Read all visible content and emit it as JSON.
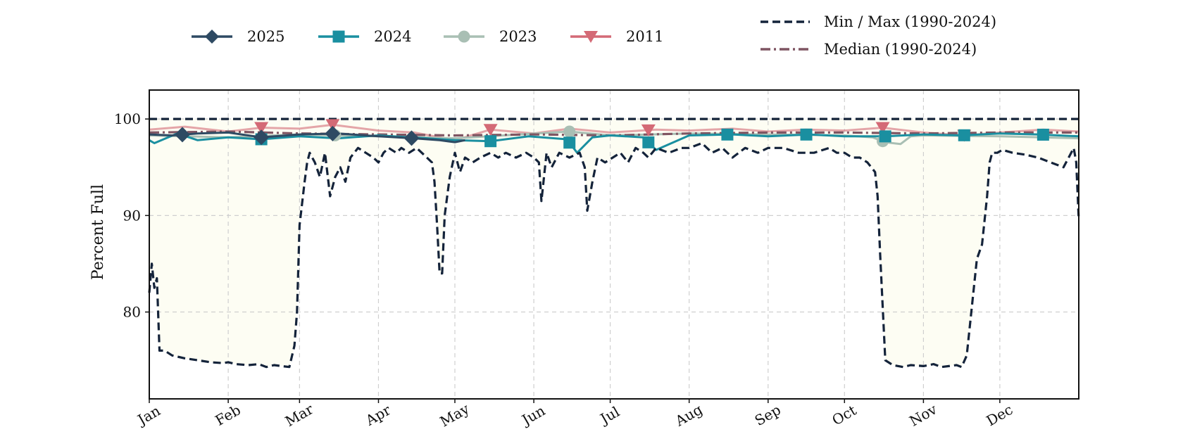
{
  "chart_data": {
    "type": "line",
    "title": "",
    "xlabel": "",
    "ylabel": "Percent Full",
    "ylim": [
      71,
      103
    ],
    "yticks": [
      80,
      90,
      100
    ],
    "x_tick_labels": [
      "Jan",
      "Feb",
      "Mar",
      "Apr",
      "May",
      "Jun",
      "Jul",
      "Aug",
      "Sep",
      "Oct",
      "Nov",
      "Dec"
    ],
    "x_tick_doy": [
      1,
      32,
      60,
      91,
      121,
      152,
      182,
      213,
      244,
      274,
      305,
      335
    ],
    "xlim_doy": [
      1,
      366
    ],
    "grid": true,
    "legend_placement": "top (above plot)",
    "shaded_band": "between min and max, light cream",
    "series": [
      {
        "name": "2025",
        "color": "#2e4a63",
        "marker": "diamond",
        "x_doy": [
          1,
          10,
          20,
          32,
          45,
          60,
          75,
          91,
          105,
          115,
          121,
          125
        ],
        "values": [
          98.4,
          98.3,
          98.5,
          98.6,
          98.1,
          98.4,
          98.5,
          98.2,
          98.0,
          97.8,
          97.6,
          97.8
        ],
        "marker_doy": [
          14,
          45,
          73,
          104
        ]
      },
      {
        "name": "2024",
        "color": "#1a8fa0",
        "marker": "square",
        "x_doy": [
          1,
          3,
          12,
          20,
          32,
          45,
          60,
          75,
          91,
          110,
          121,
          135,
          150,
          165,
          169,
          175,
          182,
          195,
          200,
          213,
          230,
          244,
          260,
          274,
          290,
          305,
          320,
          335,
          350,
          366
        ],
        "values": [
          97.8,
          97.5,
          98.5,
          97.8,
          98.1,
          97.9,
          98.2,
          98.0,
          98.3,
          98.0,
          97.8,
          97.7,
          98.2,
          97.9,
          96.5,
          98.1,
          98.3,
          98.1,
          96.8,
          98.3,
          98.4,
          98.2,
          98.4,
          98.2,
          98.2,
          98.4,
          98.3,
          98.5,
          98.4,
          98.2
        ],
        "marker_doy": [
          45,
          135,
          166,
          197,
          228,
          259,
          290,
          321,
          352
        ]
      },
      {
        "name": "2023",
        "color": "#a9bfb4",
        "marker": "circle",
        "x_doy": [
          1,
          32,
          60,
          91,
          121,
          140,
          166,
          182,
          213,
          244,
          274,
          285,
          290,
          296,
          300,
          305,
          335,
          366
        ],
        "values": [
          98.3,
          98.1,
          98.4,
          98.2,
          98.0,
          98.3,
          98.7,
          98.3,
          98.5,
          98.4,
          98.3,
          98.1,
          97.6,
          97.4,
          98.2,
          98.3,
          98.2,
          98.0
        ],
        "marker_doy": [
          74,
          166,
          289
        ]
      },
      {
        "name": "2011",
        "color": "#d46a76",
        "marker": "triangle-down",
        "x_doy": [
          1,
          15,
          32,
          45,
          60,
          73,
          91,
          105,
          121,
          135,
          152,
          166,
          182,
          200,
          213,
          230,
          244,
          259,
          274,
          289,
          305,
          321,
          335,
          352,
          366
        ],
        "values": [
          98.9,
          99.2,
          98.7,
          99.1,
          99.0,
          99.4,
          98.8,
          98.6,
          97.8,
          98.9,
          98.5,
          99.0,
          98.6,
          98.9,
          98.8,
          99.0,
          98.7,
          98.9,
          98.8,
          99.1,
          98.6,
          98.3,
          98.6,
          98.9,
          98.7
        ],
        "marker_doy": [
          45,
          73,
          135,
          197,
          289,
          321
        ]
      },
      {
        "name": "Min / Max (1990-2024)",
        "color": "#14233a",
        "style": "dashed",
        "max_values": 100.0,
        "x_doy": [
          1,
          2,
          3,
          4,
          5,
          7,
          10,
          15,
          20,
          25,
          30,
          32,
          35,
          40,
          44,
          47,
          50,
          53,
          56,
          58,
          59,
          60,
          62,
          63,
          64,
          66,
          68,
          70,
          72,
          74,
          76,
          78,
          80,
          83,
          86,
          89,
          91,
          93,
          95,
          98,
          100,
          103,
          106,
          108,
          110,
          112,
          113,
          114,
          115,
          116,
          117,
          119,
          121,
          123,
          125,
          128,
          131,
          135,
          138,
          141,
          145,
          149,
          152,
          154,
          155,
          157,
          159,
          162,
          166,
          170,
          172,
          173,
          175,
          177,
          180,
          183,
          186,
          189,
          192,
          195,
          197,
          200,
          205,
          210,
          213,
          218,
          222,
          226,
          230,
          235,
          240,
          244,
          250,
          256,
          262,
          268,
          271,
          274,
          277,
          280,
          283,
          286,
          287,
          288,
          290,
          293,
          297,
          300,
          305,
          309,
          312,
          315,
          318,
          320,
          322,
          323,
          325,
          326,
          328,
          330,
          331,
          332,
          334,
          336,
          340,
          345,
          350,
          355,
          360,
          363,
          364,
          365,
          366
        ],
        "values": [
          82.0,
          85.0,
          82.5,
          83.5,
          76.0,
          76.0,
          75.5,
          75.2,
          75.0,
          74.8,
          74.7,
          74.8,
          74.6,
          74.5,
          74.6,
          74.3,
          74.5,
          74.4,
          74.3,
          76.5,
          80.0,
          89.0,
          93.5,
          95.5,
          96.5,
          95.5,
          94.0,
          96.5,
          92.0,
          94.0,
          95.0,
          93.5,
          96.0,
          97.0,
          96.5,
          96.0,
          95.5,
          96.5,
          97.0,
          96.5,
          97.0,
          96.5,
          97.0,
          96.5,
          96.0,
          95.5,
          93.5,
          89.0,
          84.0,
          84.0,
          90.0,
          94.0,
          96.5,
          94.5,
          96.0,
          95.5,
          96.0,
          96.5,
          96.0,
          96.5,
          96.0,
          96.5,
          96.0,
          95.5,
          91.5,
          96.5,
          95.0,
          96.5,
          96.0,
          96.5,
          95.0,
          90.5,
          93.5,
          96.0,
          95.5,
          96.0,
          96.5,
          95.5,
          97.0,
          96.5,
          96.0,
          97.0,
          96.5,
          97.0,
          97.0,
          97.5,
          96.5,
          97.0,
          96.0,
          97.0,
          96.5,
          97.0,
          97.0,
          96.5,
          96.5,
          97.0,
          96.5,
          96.5,
          96.0,
          96.0,
          95.5,
          94.5,
          92.0,
          86.0,
          75.0,
          74.5,
          74.3,
          74.5,
          74.4,
          74.6,
          74.3,
          74.4,
          74.5,
          74.3,
          75.5,
          78.0,
          83.0,
          85.5,
          87.0,
          92.0,
          95.5,
          96.5,
          96.5,
          96.8,
          96.5,
          96.3,
          96.0,
          95.5,
          95.0,
          96.5,
          97.0,
          95.5,
          89.5
        ]
      },
      {
        "name": "Median (1990-2024)",
        "color": "#7f5562",
        "style": "dash-dot",
        "x_doy": [
          1,
          32,
          60,
          91,
          121,
          152,
          182,
          213,
          244,
          274,
          305,
          335,
          366
        ],
        "values": [
          98.6,
          98.7,
          98.5,
          98.4,
          98.3,
          98.4,
          98.3,
          98.5,
          98.6,
          98.6,
          98.5,
          98.6,
          98.6
        ]
      }
    ]
  }
}
